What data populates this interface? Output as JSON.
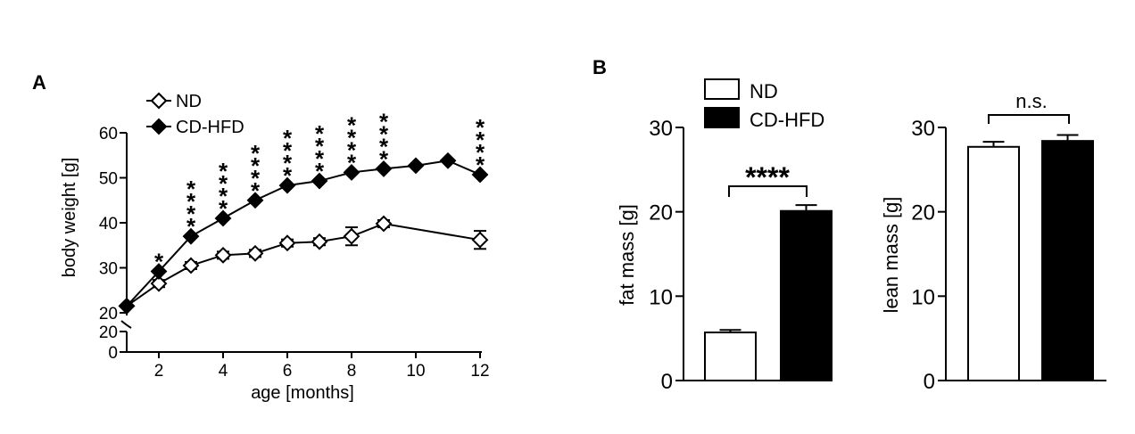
{
  "chart_data": [
    {
      "panel": "A",
      "type": "line",
      "xlabel": "age [months]",
      "ylabel": "body weight [g]",
      "xlim": [
        1,
        12
      ],
      "xticks": [
        2,
        4,
        6,
        8,
        10,
        12
      ],
      "ylim": [
        20,
        60
      ],
      "yticks": [
        20,
        30,
        40,
        50,
        60
      ],
      "broken_axis_ticks": [
        0,
        20
      ],
      "legend_position": "top-left",
      "series": [
        {
          "name": "ND",
          "marker": "open-diamond",
          "x": [
            1,
            2,
            3,
            4,
            5,
            6,
            7,
            8,
            9,
            12
          ],
          "y": [
            21.5,
            26.5,
            30.5,
            32.8,
            33.2,
            35.5,
            35.8,
            37.0,
            39.8,
            36.2
          ],
          "err": [
            0.5,
            0.8,
            0.8,
            0.8,
            0.8,
            0.8,
            0.8,
            2.0,
            0.8,
            2.0
          ]
        },
        {
          "name": "CD-HFD",
          "marker": "filled-diamond",
          "x": [
            1,
            2,
            3,
            4,
            5,
            6,
            7,
            8,
            9,
            10,
            11,
            12
          ],
          "y": [
            21.5,
            29.2,
            37.0,
            41.0,
            45.0,
            48.3,
            49.3,
            51.2,
            52.0,
            52.7,
            53.8,
            50.7
          ],
          "err": [
            0.5,
            0.6,
            0.6,
            0.6,
            0.6,
            0.6,
            0.6,
            0.6,
            0.6,
            0.6,
            0.6,
            0.6
          ]
        }
      ],
      "annotations": [
        {
          "x": 2,
          "text": "*"
        },
        {
          "x": 3,
          "text": "****"
        },
        {
          "x": 4,
          "text": "****"
        },
        {
          "x": 5,
          "text": "****"
        },
        {
          "x": 6,
          "text": "****"
        },
        {
          "x": 7,
          "text": "****"
        },
        {
          "x": 8,
          "text": "****"
        },
        {
          "x": 9,
          "text": "****"
        },
        {
          "x": 12,
          "text": "****"
        }
      ]
    },
    {
      "panel": "B",
      "type": "bar",
      "categories": [
        "ND",
        "CD-HFD"
      ],
      "subplots": [
        {
          "ylabel": "fat mass [g]",
          "ylim": [
            0,
            30
          ],
          "yticks": [
            0,
            10,
            20,
            30
          ],
          "values": [
            5.7,
            20.1
          ],
          "err": [
            0.3,
            0.7
          ],
          "significance": "****"
        },
        {
          "ylabel": "lean mass [g]",
          "ylim": [
            0,
            30
          ],
          "yticks": [
            0,
            10,
            20,
            30
          ],
          "values": [
            27.7,
            28.4
          ],
          "err": [
            0.6,
            0.7
          ],
          "significance": "n.s."
        }
      ],
      "legend": [
        "ND",
        "CD-HFD"
      ],
      "legend_position": "top-left"
    }
  ]
}
